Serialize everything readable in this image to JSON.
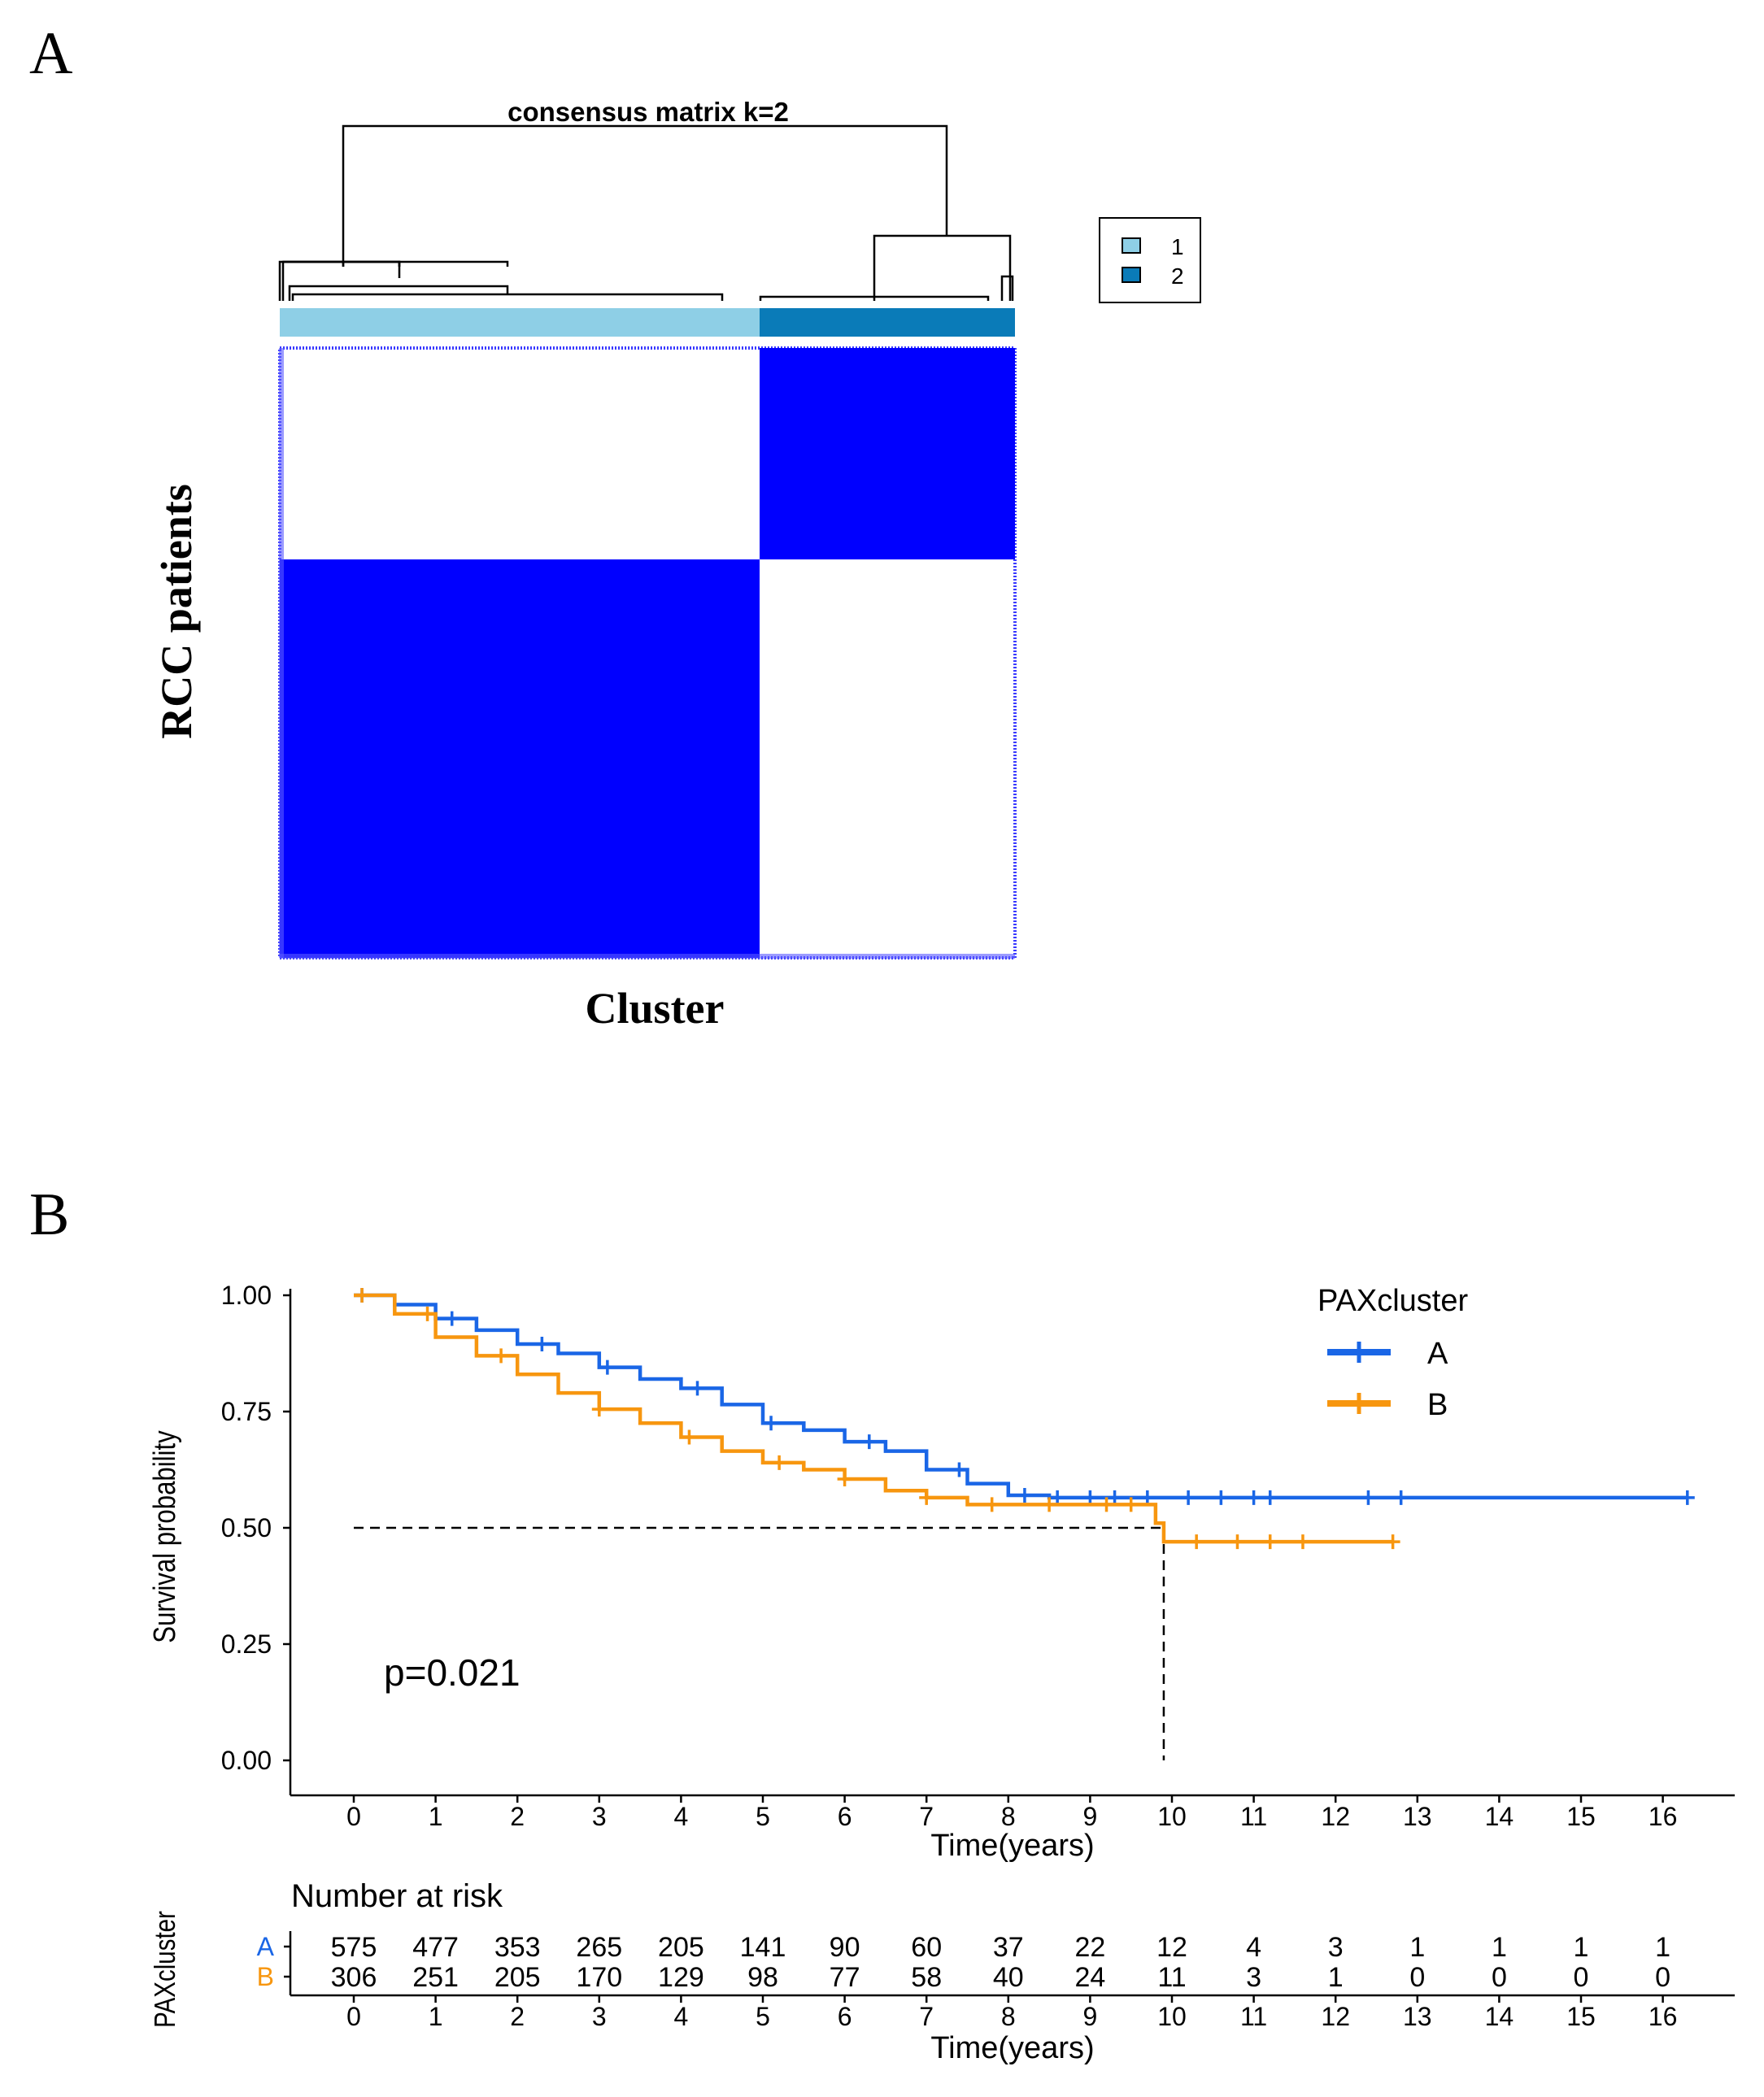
{
  "panel_a": {
    "letter": "A",
    "title": "consensus matrix k=2",
    "ylabel": "RCC patients",
    "xlabel": "Cluster",
    "legend": [
      {
        "label": "1",
        "color": "#8ecfe6"
      },
      {
        "label": "2",
        "color": "#0a7bb8"
      }
    ],
    "matrix_color": "#0000ff",
    "cluster_sizes": {
      "cluster_1": 575,
      "cluster_2": 306
    }
  },
  "panel_b": {
    "letter": "B",
    "chart_data": {
      "type": "line",
      "title": "",
      "xlabel": "Time(years)",
      "ylabel": "Survival probability",
      "xlim": [
        0,
        16
      ],
      "ylim": [
        0,
        1
      ],
      "x_ticks": [
        "0",
        "1",
        "2",
        "3",
        "4",
        "5",
        "6",
        "7",
        "8",
        "9",
        "10",
        "11",
        "12",
        "13",
        "14",
        "15",
        "16"
      ],
      "y_ticks": [
        "0.00",
        "0.25",
        "0.50",
        "0.75",
        "1.00"
      ],
      "legend_title": "PAXcluster",
      "pvalue": "p=0.021",
      "median_line": {
        "y": 0.5,
        "x": 9.9
      },
      "series": [
        {
          "name": "A",
          "color": "#1a66e6",
          "x": [
            0,
            0.5,
            1,
            1.5,
            2,
            2.5,
            3,
            3.5,
            4,
            4.5,
            5,
            5.5,
            6,
            6.5,
            7,
            7.5,
            8,
            8.5,
            9,
            10,
            11,
            12,
            13,
            14,
            15,
            16.3
          ],
          "y": [
            1.0,
            0.98,
            0.95,
            0.925,
            0.895,
            0.875,
            0.845,
            0.82,
            0.8,
            0.765,
            0.725,
            0.71,
            0.685,
            0.665,
            0.625,
            0.595,
            0.57,
            0.565,
            0.565,
            0.565,
            0.565,
            0.565,
            0.565,
            0.565,
            0.565,
            0.565
          ],
          "censor_x": [
            0.1,
            1.2,
            2.3,
            3.1,
            4.2,
            5.1,
            6.3,
            7.4,
            8.2,
            8.6,
            9.0,
            9.3,
            9.7,
            10.2,
            10.6,
            11.0,
            11.2,
            12.4,
            12.8,
            16.3
          ]
        },
        {
          "name": "B",
          "color": "#f7960f",
          "x": [
            0,
            0.5,
            1,
            1.5,
            2,
            2.5,
            3,
            3.5,
            4,
            4.5,
            5,
            5.5,
            6,
            6.5,
            7,
            7.5,
            8,
            8.5,
            9,
            9.6,
            9.8,
            9.9,
            10.5,
            11,
            11.5,
            12,
            12.7
          ],
          "y": [
            1.0,
            0.96,
            0.91,
            0.87,
            0.83,
            0.79,
            0.755,
            0.725,
            0.695,
            0.665,
            0.64,
            0.625,
            0.605,
            0.58,
            0.565,
            0.55,
            0.55,
            0.55,
            0.55,
            0.55,
            0.51,
            0.47,
            0.47,
            0.47,
            0.47,
            0.47,
            0.47
          ],
          "censor_x": [
            0.1,
            0.9,
            1.8,
            3.0,
            4.1,
            5.2,
            6.0,
            7.0,
            7.8,
            8.5,
            9.2,
            9.5,
            10.3,
            10.8,
            11.2,
            11.6,
            12.7
          ]
        }
      ]
    },
    "risk_table": {
      "title": "Number at risk",
      "ylabel": "PAXcluster",
      "xlabel": "Time(years)",
      "rows": [
        {
          "label": "A",
          "color": "#1a66e6",
          "values": [
            "575",
            "477",
            "353",
            "265",
            "205",
            "141",
            "90",
            "60",
            "37",
            "22",
            "12",
            "4",
            "3",
            "1",
            "1",
            "1",
            "1"
          ]
        },
        {
          "label": "B",
          "color": "#f7960f",
          "values": [
            "306",
            "251",
            "205",
            "170",
            "129",
            "98",
            "77",
            "58",
            "40",
            "24",
            "11",
            "3",
            "1",
            "0",
            "0",
            "0",
            "0"
          ]
        }
      ]
    }
  }
}
